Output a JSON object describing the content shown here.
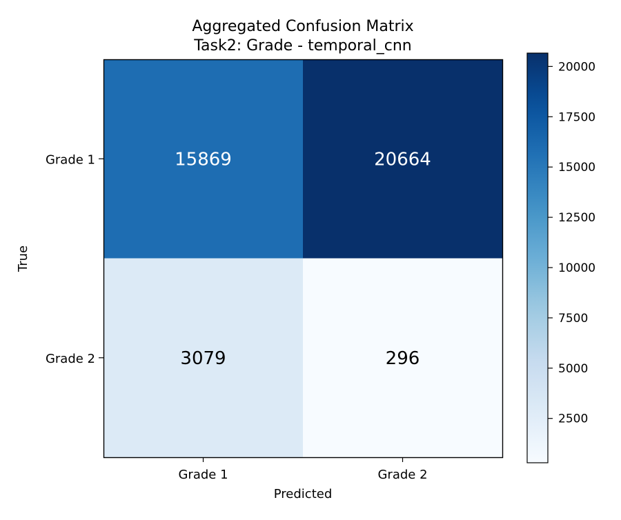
{
  "chart_data": {
    "type": "heatmap",
    "title": "Aggregated Confusion Matrix",
    "subtitle": "Task2: Grade - temporal_cnn",
    "xlabel": "Predicted",
    "ylabel": "True",
    "x_categories": [
      "Grade 1",
      "Grade 2"
    ],
    "y_categories": [
      "Grade 1",
      "Grade 2"
    ],
    "matrix": [
      [
        15869,
        20664
      ],
      [
        3079,
        296
      ]
    ],
    "colormap": "Blues",
    "color_range": [
      296,
      20664
    ],
    "colorbar_ticks": [
      2500,
      5000,
      7500,
      10000,
      12500,
      15000,
      17500,
      20000
    ],
    "legend": "colorbar-right"
  }
}
